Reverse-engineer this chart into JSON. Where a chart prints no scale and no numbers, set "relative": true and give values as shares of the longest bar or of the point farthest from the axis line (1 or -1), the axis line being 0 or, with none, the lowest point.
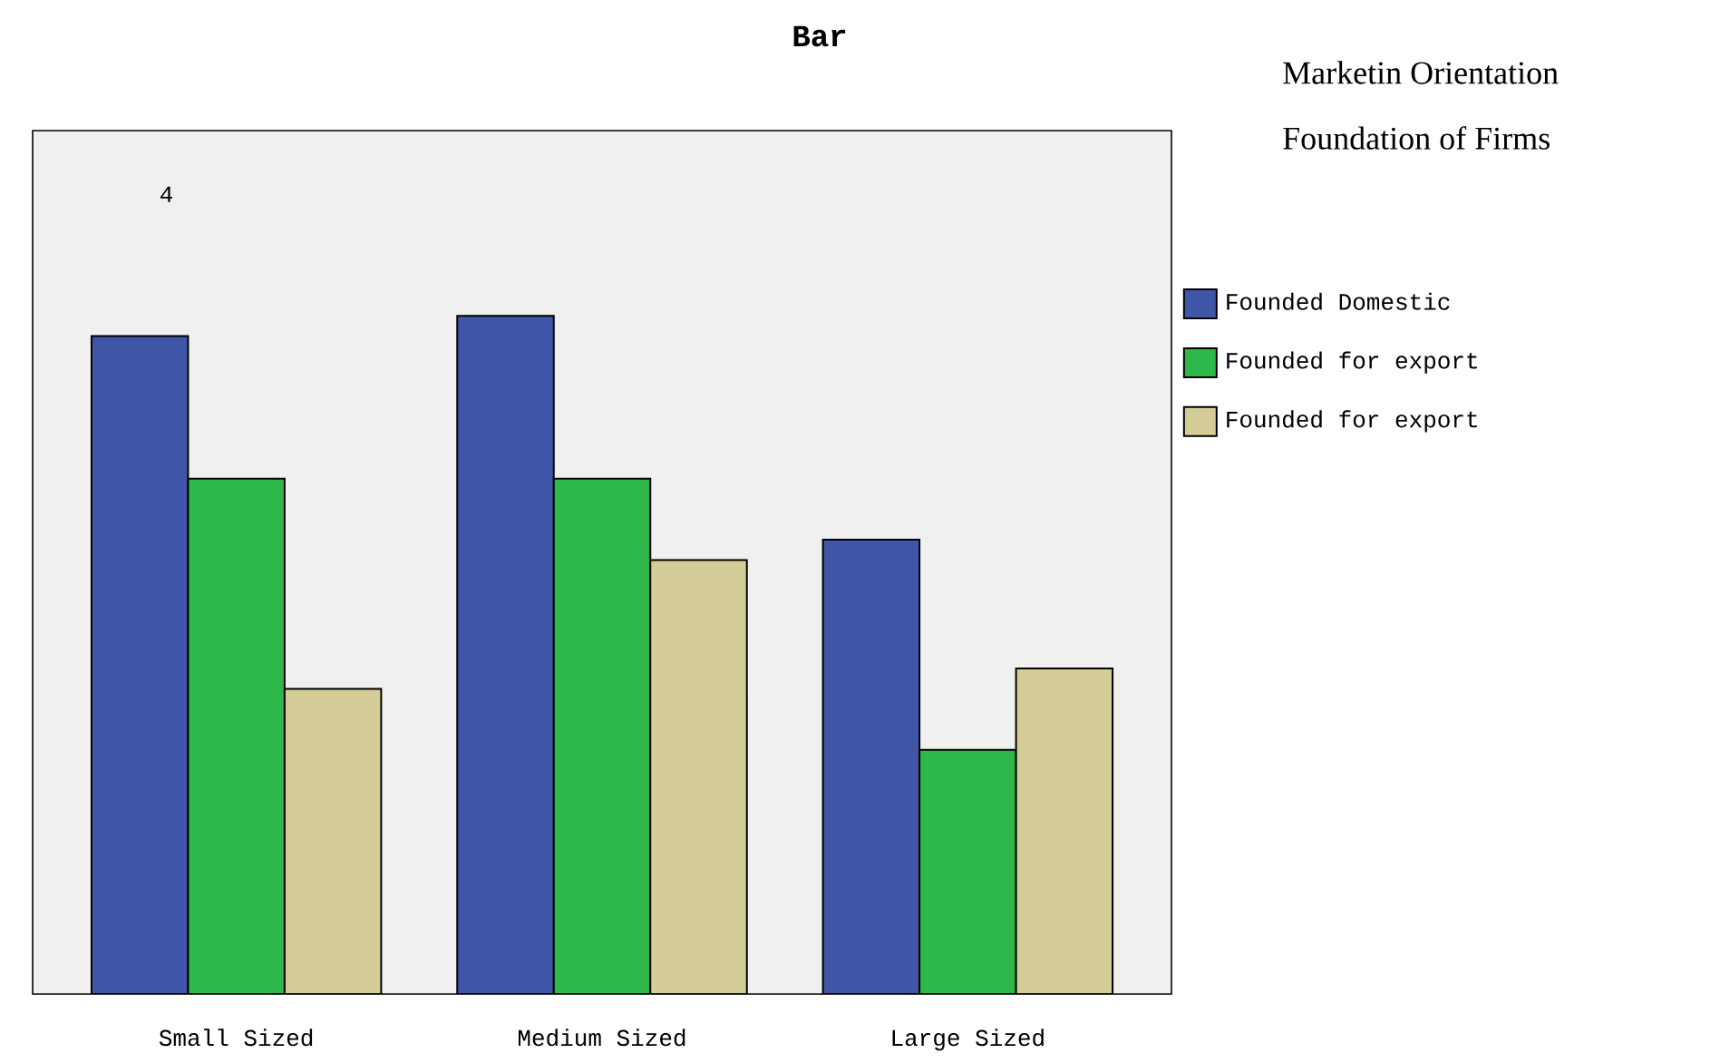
{
  "chart_data": {
    "type": "bar",
    "title": "Bar",
    "legend_title": "Marketin Orientation",
    "annotations": [
      "Foundation of Firms",
      "4"
    ],
    "categories": [
      "Small Sized",
      "Medium Sized",
      "Large Sized"
    ],
    "relative": true,
    "legend": "right",
    "series": [
      {
        "name": "Founded Domestic",
        "color": "#3f56a8",
        "values": [
          0.97,
          1,
          0.67
        ]
      },
      {
        "name": "Founded for export",
        "color": "#2fb84a",
        "values": [
          0.76,
          0.76,
          0.36
        ]
      },
      {
        "name": "Founded for export",
        "color": "#d4cd98",
        "values": [
          0.45,
          0.64,
          0.48
        ]
      }
    ]
  }
}
